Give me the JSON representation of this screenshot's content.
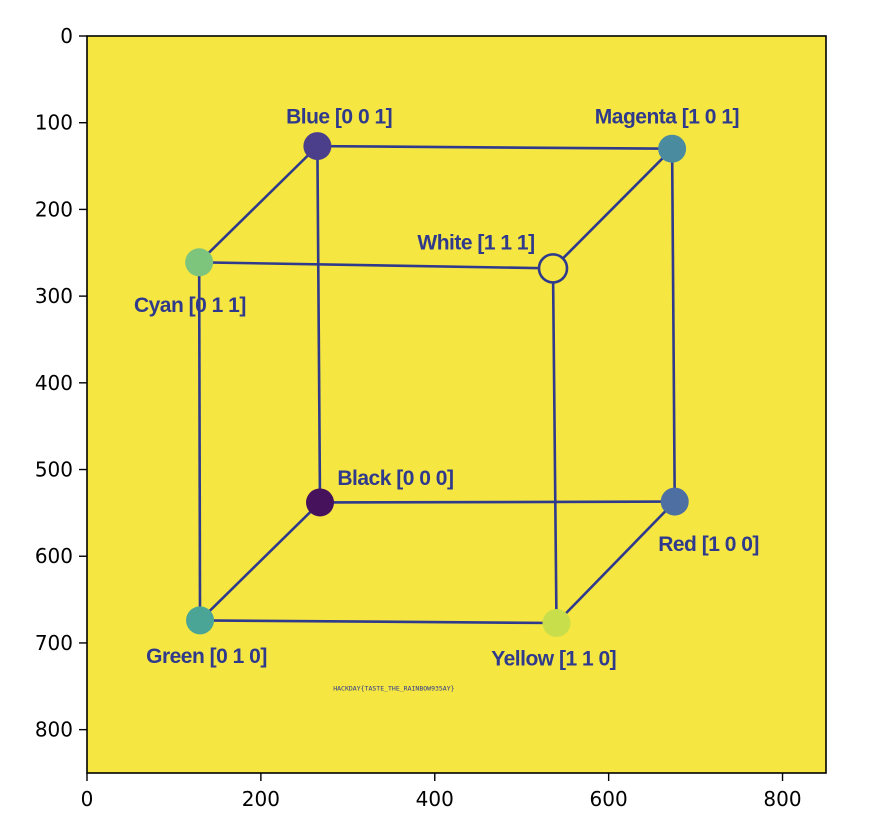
{
  "chart_data": {
    "type": "scatter",
    "title": "",
    "xlabel": "",
    "ylabel": "",
    "xlim": [
      0,
      850
    ],
    "ylim": [
      850,
      0
    ],
    "x_ticks": [
      0,
      200,
      400,
      600,
      800
    ],
    "y_ticks": [
      0,
      100,
      200,
      300,
      400,
      500,
      600,
      700,
      800
    ],
    "grid": false,
    "background_color": "#f5e642",
    "line_color": "#2f3a8c",
    "vertices": [
      {
        "id": "blue",
        "label": "Blue [0 0 1]",
        "x": 265,
        "y": 127,
        "color": "#4b3f8c",
        "label_x": 290,
        "label_y": 93,
        "anchor": "middle"
      },
      {
        "id": "magenta",
        "label": "Magenta [1 0 1]",
        "x": 673,
        "y": 130,
        "color": "#4a8ba0",
        "label_x": 667,
        "label_y": 93,
        "anchor": "middle"
      },
      {
        "id": "cyan",
        "label": "Cyan [0 1 1]",
        "x": 129,
        "y": 261,
        "color": "#7dc47c",
        "label_x": 54,
        "label_y": 310,
        "anchor": "start"
      },
      {
        "id": "white",
        "label": "White [1 1 1]",
        "x": 536,
        "y": 268,
        "color": "#f5e642",
        "label_x": 380,
        "label_y": 238,
        "anchor": "start",
        "hollow": true
      },
      {
        "id": "black",
        "label": "Black [0 0 0]",
        "x": 268,
        "y": 538,
        "color": "#46125c",
        "label_x": 288,
        "label_y": 510,
        "anchor": "start"
      },
      {
        "id": "red",
        "label": "Red [1 0 0]",
        "x": 676,
        "y": 537,
        "color": "#4d6fa1",
        "label_x": 657,
        "label_y": 586,
        "anchor": "start"
      },
      {
        "id": "green",
        "label": "Green [0 1 0]",
        "x": 130,
        "y": 674,
        "color": "#4aa596",
        "label_x": 68,
        "label_y": 715,
        "anchor": "start"
      },
      {
        "id": "yellow",
        "label": "Yellow [1 1 0]",
        "x": 540,
        "y": 677,
        "color": "#c8de4a",
        "label_x": 465,
        "label_y": 718,
        "anchor": "start"
      }
    ],
    "edges": [
      [
        "blue",
        "magenta"
      ],
      [
        "blue",
        "cyan"
      ],
      [
        "blue",
        "black"
      ],
      [
        "magenta",
        "white"
      ],
      [
        "magenta",
        "red"
      ],
      [
        "cyan",
        "white"
      ],
      [
        "cyan",
        "green"
      ],
      [
        "white",
        "yellow"
      ],
      [
        "black",
        "red"
      ],
      [
        "black",
        "green"
      ],
      [
        "red",
        "yellow"
      ],
      [
        "green",
        "yellow"
      ]
    ],
    "annotations": [
      {
        "text": "HACKDAY{TASTE_THE_RAINBOW935AY}",
        "x": 353,
        "y": 755
      }
    ]
  }
}
